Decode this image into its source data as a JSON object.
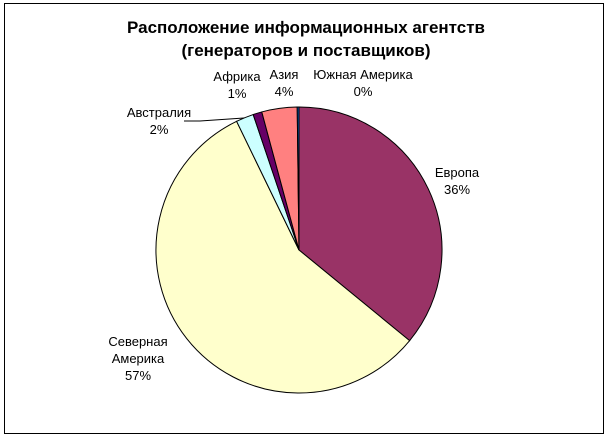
{
  "chart_data": {
    "type": "pie",
    "title": [
      "Расположение информационных агентств",
      "(генераторов и поставщиков)"
    ],
    "slices": [
      {
        "name": "Европа",
        "value": 36,
        "label": "36%",
        "color": "#993366"
      },
      {
        "name": "Северная Америка",
        "value": 57,
        "label": "57%",
        "color": "#FFFFCC"
      },
      {
        "name": "Австралия",
        "value": 2,
        "label": "2%",
        "color": "#CCFFFF"
      },
      {
        "name": "Африка",
        "value": 1,
        "label": "1%",
        "color": "#660066"
      },
      {
        "name": "Азия",
        "value": 4,
        "label": "4%",
        "color": "#FF8080"
      },
      {
        "name": "Южная Америка",
        "value": 0.2,
        "label": "0%",
        "color": "#0066CC"
      }
    ],
    "legend": "none"
  }
}
